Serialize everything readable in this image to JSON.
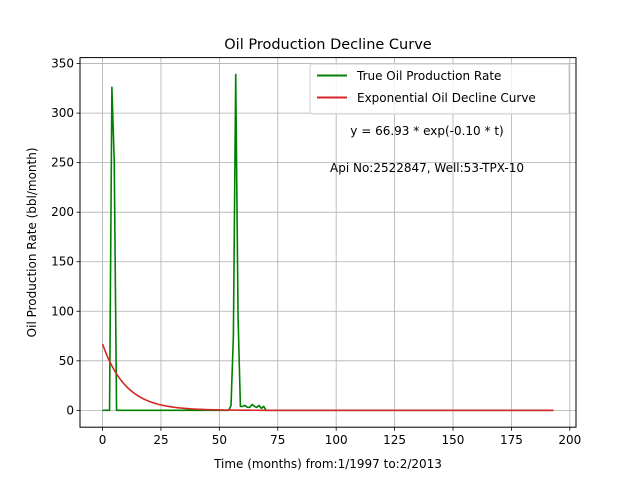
{
  "chart_data": {
    "type": "line",
    "title": "Oil Production Decline Curve",
    "xlabel": "Time (months) from:1/1997 to:2/2013",
    "ylabel": "Oil Production Rate (bbl/month)",
    "xlim": [
      -9.65,
      202.65
    ],
    "ylim": [
      -17.0,
      356.0
    ],
    "xticks": [
      0,
      25,
      50,
      75,
      100,
      125,
      150,
      175,
      200
    ],
    "yticks": [
      0,
      50,
      100,
      150,
      200,
      250,
      300,
      350
    ],
    "grid": true,
    "legend_position": "top-right",
    "annotations": [
      "y = 66.93 * exp(-0.10 * t)",
      "Api No:2522847, Well:53-TPX-10"
    ],
    "series": [
      {
        "name": "True Oil Production Rate",
        "color": "#008000",
        "x": [
          0,
          1,
          2,
          3,
          4,
          5,
          6,
          7,
          8,
          20,
          40,
          54,
          55,
          56,
          57,
          58,
          59,
          60,
          61,
          62,
          63,
          64,
          65,
          66,
          67,
          68,
          69,
          70,
          71,
          80,
          100,
          125,
          150,
          175,
          193
        ],
        "y": [
          0,
          0,
          0,
          0,
          326,
          252,
          0,
          0,
          0,
          0,
          0,
          0,
          5,
          75,
          339,
          95,
          4,
          4,
          5,
          3,
          3,
          6,
          4,
          3,
          5,
          2,
          4,
          0,
          0,
          0,
          0,
          0,
          0,
          0,
          0
        ]
      },
      {
        "name": "Exponential Oil Decline Curve",
        "color": "#d62728",
        "model": {
          "a": 66.93,
          "b": -0.1
        },
        "x_range": [
          0,
          193
        ]
      }
    ]
  }
}
